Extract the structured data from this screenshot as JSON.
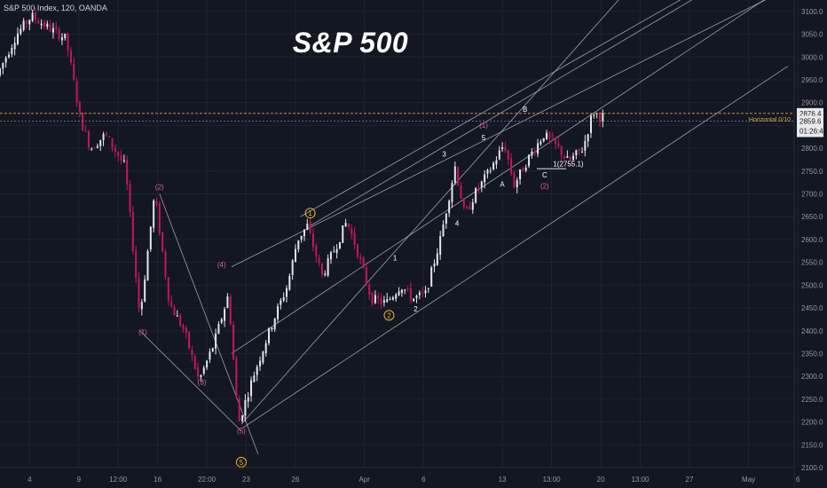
{
  "header": {
    "symbol_line": "S&P 500 Index, 120, OANDA"
  },
  "colors": {
    "background": "#131722",
    "up": "#e6e6ea",
    "down": "#c2185b",
    "grid": "#1f2330",
    "trendline": "#c9cbd2",
    "price_line": "#d8a64a",
    "axis_text": "#9598a1",
    "wave_white": "#ffffff",
    "wave_pink": "#e0609c",
    "wave_orange": "#f0b429"
  },
  "chart_data": {
    "type": "candlestick",
    "title": "S&P 500",
    "y_axis": {
      "ylim": [
        2100,
        3125
      ],
      "ticks": [
        "3100.0",
        "3050.0",
        "3000.0",
        "2950.0",
        "2900.0",
        "2850.0",
        "2800.0",
        "2750.0",
        "2700.0",
        "2650.0",
        "2600.0",
        "2550.0",
        "2500.0",
        "2450.0",
        "2400.0",
        "2350.0",
        "2300.0",
        "2250.0",
        "2200.0",
        "2150.0",
        "2100.0"
      ],
      "tick_values": [
        3100,
        3050,
        3000,
        2950,
        2900,
        2850,
        2800,
        2750,
        2700,
        2650,
        2600,
        2550,
        2500,
        2450,
        2400,
        2350,
        2300,
        2250,
        2200,
        2150,
        2100
      ]
    },
    "x_axis": {
      "ticks": [
        "4",
        "9",
        "12:00",
        "16",
        "22:00",
        "23",
        "26",
        "Apr",
        "6",
        "13",
        "13:00",
        "20",
        "13:00",
        "27",
        "May",
        "6"
      ],
      "tick_index": [
        3,
        8,
        12,
        16,
        21,
        25,
        30,
        37,
        43,
        51,
        56,
        61,
        65,
        70,
        76,
        81
      ]
    },
    "horizontal_line": {
      "value": 2876.4,
      "label": "Horizontal 0/10",
      "price_label": "2876.4"
    },
    "last_price": {
      "value": 2859.6,
      "label": "2859.6",
      "countdown": "01:26:40"
    },
    "waypoints": [
      [
        0,
        2960
      ],
      [
        2,
        3050
      ],
      [
        3.5,
        3090
      ],
      [
        5.5,
        3060
      ],
      [
        7,
        3040
      ],
      [
        8.5,
        2860
      ],
      [
        9.5,
        2800
      ],
      [
        11,
        2830
      ],
      [
        13,
        2760
      ],
      [
        14.5,
        2430
      ],
      [
        16,
        2700
      ],
      [
        17.5,
        2460
      ],
      [
        19,
        2400
      ],
      [
        20.5,
        2290
      ],
      [
        22,
        2370
      ],
      [
        23.5,
        2480
      ],
      [
        24.5,
        2195
      ],
      [
        26,
        2300
      ],
      [
        28,
        2420
      ],
      [
        29.5,
        2500
      ],
      [
        30.5,
        2600
      ],
      [
        31.5,
        2630
      ],
      [
        33,
        2520
      ],
      [
        34.5,
        2590
      ],
      [
        35.5,
        2640
      ],
      [
        36.5,
        2580
      ],
      [
        38,
        2470
      ],
      [
        39.5,
        2460
      ],
      [
        41,
        2500
      ],
      [
        42.2,
        2470
      ],
      [
        43.5,
        2480
      ],
      [
        45,
        2600
      ],
      [
        46.5,
        2760
      ],
      [
        47.5,
        2650
      ],
      [
        48.5,
        2700
      ],
      [
        50,
        2750
      ],
      [
        51.5,
        2810
      ],
      [
        52.5,
        2720
      ],
      [
        54,
        2780
      ],
      [
        55.5,
        2830
      ],
      [
        57,
        2800
      ],
      [
        58,
        2770
      ],
      [
        59.5,
        2800
      ],
      [
        60.5,
        2880
      ],
      [
        61.2,
        2870
      ]
    ],
    "wave_labels": [
      {
        "text": "(2)",
        "x": 16.2,
        "y": 2710,
        "color": "pink"
      },
      {
        "text": "(4)",
        "x": 22.5,
        "y": 2540,
        "color": "pink"
      },
      {
        "text": "(1)",
        "x": 14.5,
        "y": 2392,
        "color": "pink"
      },
      {
        "text": "(3)",
        "x": 20.5,
        "y": 2282,
        "color": "pink"
      },
      {
        "text": "(5)",
        "x": 24.5,
        "y": 2175,
        "color": "pink"
      },
      {
        "text": "1",
        "x": 31.5,
        "y": 2652,
        "color": "orange",
        "circled": true
      },
      {
        "text": "2",
        "x": 39.5,
        "y": 2428,
        "color": "orange",
        "circled": true
      },
      {
        "text": "5",
        "x": 24.5,
        "y": 2106,
        "color": "orange",
        "circled": true
      },
      {
        "text": "1",
        "x": 40.1,
        "y": 2554,
        "color": "white"
      },
      {
        "text": "2",
        "x": 42.2,
        "y": 2442,
        "color": "white"
      },
      {
        "text": "3",
        "x": 45.1,
        "y": 2782,
        "color": "white"
      },
      {
        "text": "4",
        "x": 46.4,
        "y": 2630,
        "color": "white"
      },
      {
        "text": "5",
        "x": 49.1,
        "y": 2818,
        "color": "white"
      },
      {
        "text": "(1)",
        "x": 49.1,
        "y": 2845,
        "color": "pink"
      },
      {
        "text": "A",
        "x": 51,
        "y": 2716,
        "color": "white"
      },
      {
        "text": "B",
        "x": 53.3,
        "y": 2880,
        "color": "white"
      },
      {
        "text": "C",
        "x": 55.3,
        "y": 2736,
        "color": "white"
      },
      {
        "text": "(2)",
        "x": 55.3,
        "y": 2712,
        "color": "pink"
      },
      {
        "text": "1(2755.1)",
        "x": 57.7,
        "y": 2760,
        "color": "white"
      }
    ]
  }
}
